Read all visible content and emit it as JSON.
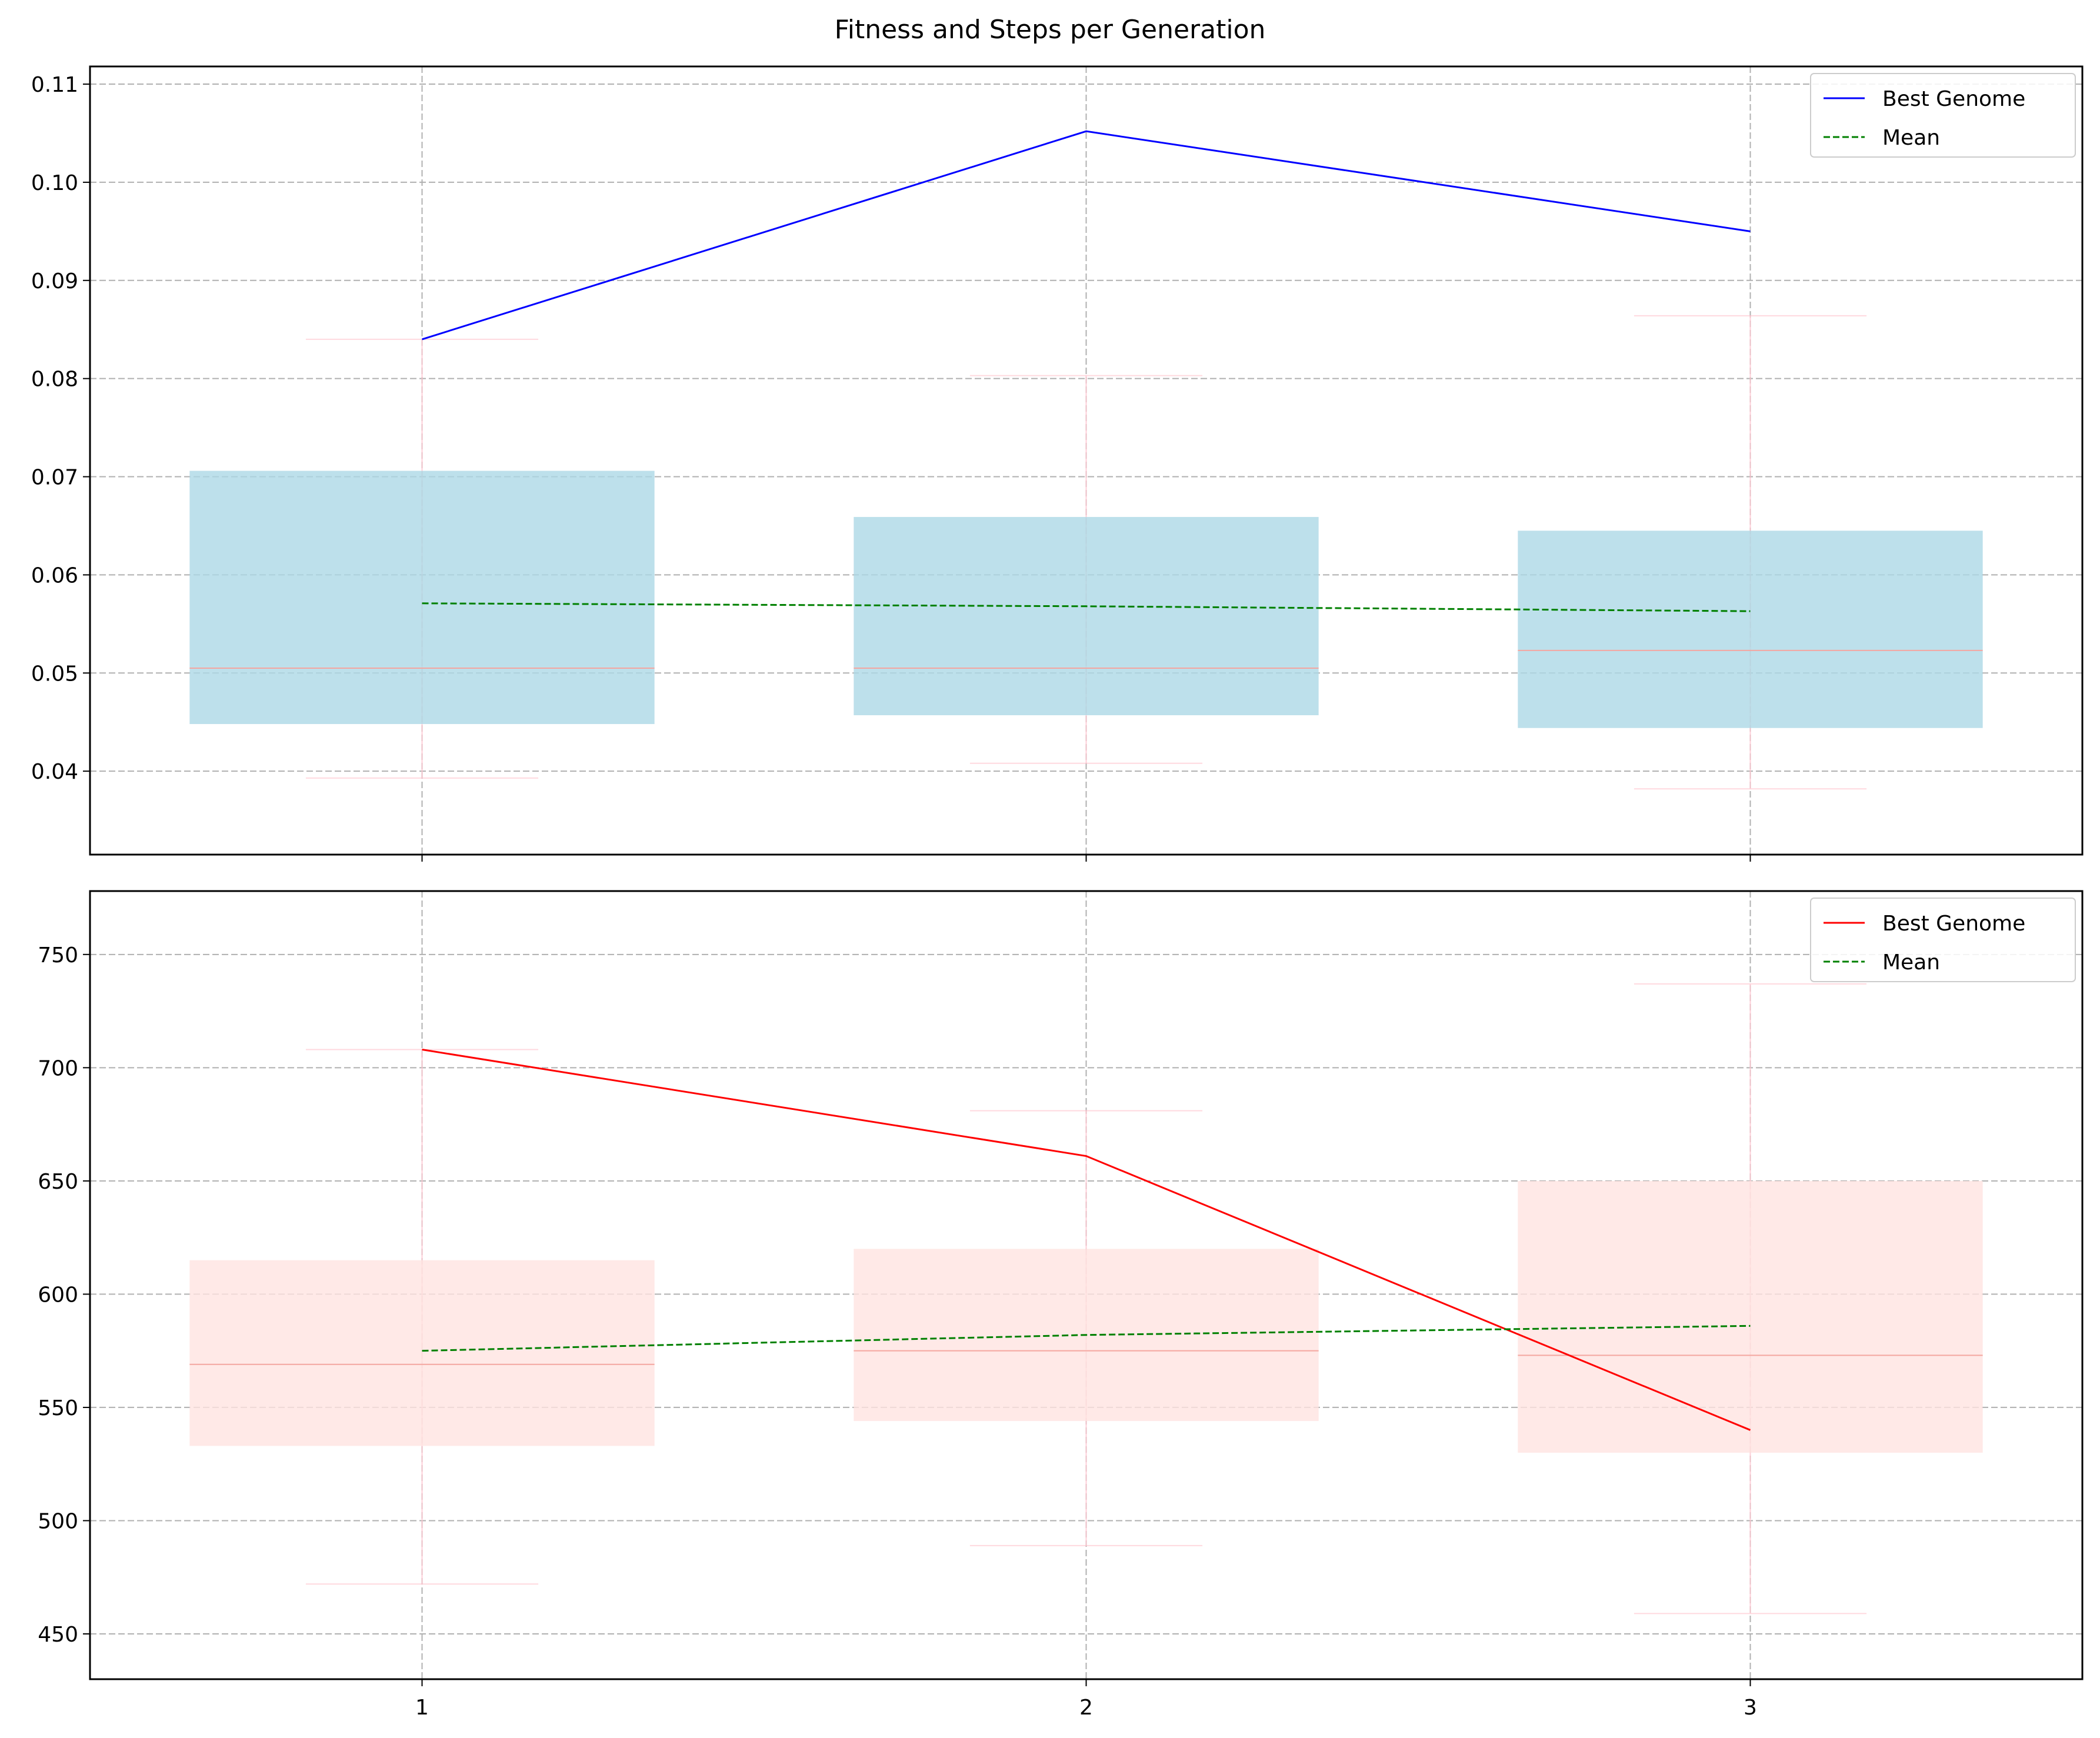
{
  "figure": {
    "title": "Fitness and Steps per Generation"
  },
  "chart_data": [
    {
      "type": "box",
      "title": "",
      "xlabel": "",
      "ylabel": "",
      "x_categories": [
        "1",
        "2",
        "3"
      ],
      "ylim": [
        0.0315,
        0.1118
      ],
      "y_ticks": [
        "0.04",
        "0.05",
        "0.06",
        "0.07",
        "0.08",
        "0.09",
        "0.10",
        "0.11"
      ],
      "grid": true,
      "legend_position": "top-right",
      "box_color": "#add8e6",
      "whisker_color": "#ffc0cb",
      "boxes": [
        {
          "x": 1,
          "whisker_low": 0.0393,
          "q1": 0.0448,
          "median": 0.0505,
          "q3": 0.0706,
          "whisker_high": 0.084
        },
        {
          "x": 2,
          "whisker_low": 0.0408,
          "q1": 0.0457,
          "median": 0.0505,
          "q3": 0.0659,
          "whisker_high": 0.0803
        },
        {
          "x": 3,
          "whisker_low": 0.0382,
          "q1": 0.0444,
          "median": 0.0523,
          "q3": 0.0645,
          "whisker_high": 0.0864
        }
      ],
      "series": [
        {
          "name": "Best Genome",
          "x": [
            1,
            2,
            3
          ],
          "values": [
            0.084,
            0.1052,
            0.095
          ],
          "color": "#0000ff",
          "style": "solid"
        },
        {
          "name": "Mean",
          "x": [
            1,
            2,
            3
          ],
          "values": [
            0.0571,
            0.0568,
            0.0563
          ],
          "color": "#008000",
          "style": "dashed"
        }
      ]
    },
    {
      "type": "box",
      "title": "",
      "xlabel": "",
      "ylabel": "",
      "x_categories": [
        "1",
        "2",
        "3"
      ],
      "ylim": [
        430,
        778
      ],
      "y_ticks": [
        "450",
        "500",
        "550",
        "600",
        "650",
        "700",
        "750"
      ],
      "grid": true,
      "legend_position": "top-right",
      "box_color": "#ffe4e1",
      "whisker_color": "#ffc0cb",
      "boxes": [
        {
          "x": 1,
          "whisker_low": 472,
          "q1": 533,
          "median": 569,
          "q3": 615,
          "whisker_high": 708
        },
        {
          "x": 2,
          "whisker_low": 489,
          "q1": 544,
          "median": 575,
          "q3": 620,
          "whisker_high": 681
        },
        {
          "x": 3,
          "whisker_low": 459,
          "q1": 530,
          "median": 573,
          "q3": 650,
          "whisker_high": 737
        }
      ],
      "series": [
        {
          "name": "Best Genome",
          "x": [
            1,
            2,
            3
          ],
          "values": [
            708,
            661,
            540
          ],
          "color": "#ff0000",
          "style": "solid"
        },
        {
          "name": "Mean",
          "x": [
            1,
            2,
            3
          ],
          "values": [
            575,
            582,
            586
          ],
          "color": "#008000",
          "style": "dashed"
        }
      ]
    }
  ]
}
